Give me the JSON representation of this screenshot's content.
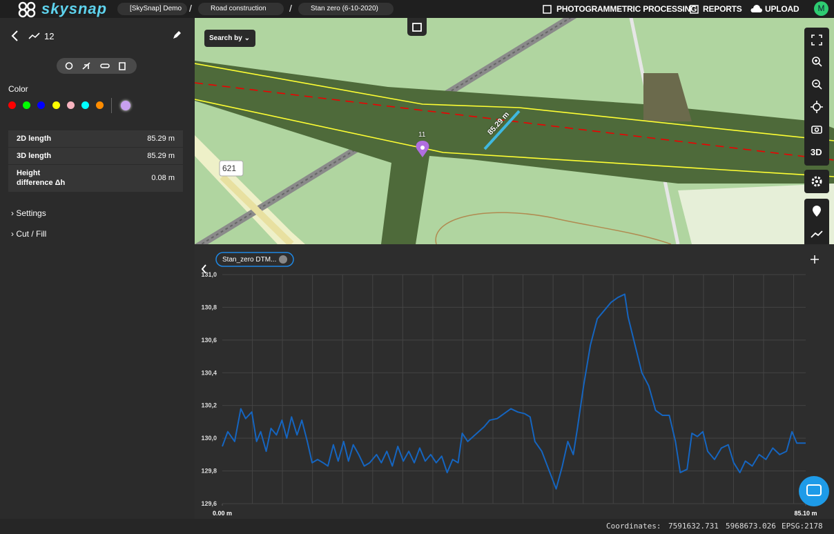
{
  "header": {
    "logo": "skysnap",
    "breadcrumbs": [
      "[SkySnap] Demo",
      "Road construction",
      "Stan zero (6-10-2020)"
    ],
    "actions": [
      "PHOTOGRAMMETRIC PROCESSING",
      "REPORTS",
      "UPLOAD"
    ],
    "avatar": "M"
  },
  "sidebar": {
    "measurement_id": "12",
    "color_label": "Color",
    "measurements": [
      {
        "label": "2D length",
        "value": "85.29 m"
      },
      {
        "label": "3D length",
        "value": "85.29 m"
      },
      {
        "label": "Height difference Δh",
        "value": "0.08 m"
      }
    ],
    "sections": [
      "Settings",
      "Cut / Fill"
    ]
  },
  "map": {
    "search": "Search by",
    "road_number": "621",
    "marker": "11",
    "measurement_label": "85.29 m",
    "control_3d": "3D"
  },
  "chart_data": {
    "type": "line",
    "x": [
      0,
      0.8,
      1.8,
      2.7,
      3.4,
      4.3,
      5.0,
      5.6,
      6.4,
      7.1,
      7.9,
      8.7,
      9.4,
      10.1,
      10.9,
      11.6,
      12.4,
      13.1,
      13.9,
      14.7,
      15.4,
      16.2,
      16.9,
      17.7,
      18.4,
      19.1,
      19.9,
      20.7,
      21.5,
      22.5,
      23.2,
      24.0,
      24.8,
      25.6,
      26.4,
      27.2,
      28.0,
      28.8,
      29.6,
      30.4,
      31.2,
      32.0,
      32.8,
      33.6,
      34.4,
      35.0,
      35.8,
      36.6,
      37.4,
      38.2,
      39.0,
      40.1,
      41.1,
      42.1,
      43.1,
      44.1,
      44.9,
      45.6,
      46.6,
      47.6,
      48.7,
      49.6,
      50.4,
      51.2,
      51.8,
      52.7,
      53.7,
      54.7,
      55.7,
      56.7,
      57.7,
      58.7,
      59.2,
      60.2,
      61.2,
      62.2,
      63.2,
      64.2,
      65.2,
      66.1,
      66.8,
      67.8,
      68.5,
      69.3,
      70.1,
      70.8,
      71.8,
      72.8,
      73.8,
      74.6,
      75.5,
      76.3,
      77.3,
      78.3,
      79.3,
      80.3,
      81.3,
      82.3,
      83.1,
      83.8,
      85.1
    ],
    "series": [
      {
        "name": "Stan_zero DTM...",
        "color": "#1565c0",
        "values": [
          129.95,
          130.04,
          129.98,
          130.18,
          130.12,
          130.16,
          129.98,
          130.04,
          129.92,
          130.06,
          130.02,
          130.11,
          130.0,
          130.13,
          130.02,
          130.11,
          129.98,
          129.85,
          129.87,
          129.85,
          129.83,
          129.96,
          129.86,
          129.98,
          129.86,
          129.96,
          129.9,
          129.83,
          129.85,
          129.9,
          129.85,
          129.92,
          129.83,
          129.95,
          129.86,
          129.92,
          129.85,
          129.94,
          129.86,
          129.9,
          129.85,
          129.89,
          129.79,
          129.87,
          129.85,
          130.03,
          129.98,
          130.01,
          130.04,
          130.07,
          130.11,
          130.12,
          130.15,
          130.18,
          130.16,
          130.15,
          130.13,
          129.98,
          129.92,
          129.81,
          129.69,
          129.83,
          129.98,
          129.9,
          130.06,
          130.32,
          130.57,
          130.73,
          130.78,
          130.83,
          130.86,
          130.88,
          130.74,
          130.57,
          130.4,
          130.32,
          130.17,
          130.14,
          130.14,
          129.98,
          129.79,
          129.81,
          130.03,
          130.01,
          130.04,
          129.92,
          129.87,
          129.94,
          129.96,
          129.85,
          129.79,
          129.86,
          129.83,
          129.9,
          129.87,
          129.94,
          129.9,
          129.92,
          130.04,
          129.97,
          129.97
        ]
      }
    ],
    "xlim": [
      0,
      85.1
    ],
    "xticks": [
      {
        "value": 0,
        "label": "0.00 m"
      },
      {
        "value": 85.1,
        "label": "85.10 m"
      }
    ],
    "ylim": [
      129.6,
      131.0
    ],
    "yticks": [
      {
        "value": 129.6,
        "label": "129,6"
      },
      {
        "value": 129.8,
        "label": "129,8"
      },
      {
        "value": 130.0,
        "label": "130,0"
      },
      {
        "value": 130.2,
        "label": "130,2"
      },
      {
        "value": 130.4,
        "label": "130,4"
      },
      {
        "value": 130.6,
        "label": "130,6"
      },
      {
        "value": 130.8,
        "label": "130,8"
      },
      {
        "value": 131.0,
        "label": "131,0"
      }
    ],
    "grid": true
  },
  "footer": {
    "coordinates_label": "Coordinates:",
    "x": "7591632.731",
    "y": "5968673.026",
    "crs": "EPSG:2178"
  }
}
